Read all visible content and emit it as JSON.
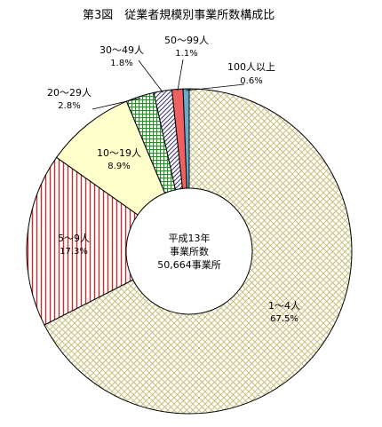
{
  "chart_data": {
    "type": "pie",
    "style": "donut",
    "title": "第3図　従業者規模別事業所数構成比",
    "center_text": [
      "平成13年",
      "事業所数",
      "50,664事業所"
    ],
    "start_angle_deg": 0,
    "direction": "clockwise",
    "slices": [
      {
        "label": "1～4人",
        "value": 67.5,
        "value_label": "67.5%",
        "color": "#c9bf7e",
        "fill": "crosshatch-diag"
      },
      {
        "label": "5～9人",
        "value": 17.3,
        "value_label": "17.3%",
        "color": "#c03030",
        "fill": "vertical-lines"
      },
      {
        "label": "10～19人",
        "value": 8.9,
        "value_label": "8.9%",
        "color": "#ffffcc",
        "fill": "solid"
      },
      {
        "label": "20～29人",
        "value": 2.8,
        "value_label": "2.8%",
        "color": "#2e8b2e",
        "fill": "grid"
      },
      {
        "label": "30～49人",
        "value": 1.8,
        "value_label": "1.8%",
        "color": "#3a3070",
        "fill": "diagonal-lines"
      },
      {
        "label": "50～99人",
        "value": 1.1,
        "value_label": "1.1%",
        "color": "#f06060",
        "fill": "solid"
      },
      {
        "label": "100人以上",
        "value": 0.6,
        "value_label": "0.6%",
        "color": "#66aacc",
        "fill": "solid"
      }
    ]
  }
}
